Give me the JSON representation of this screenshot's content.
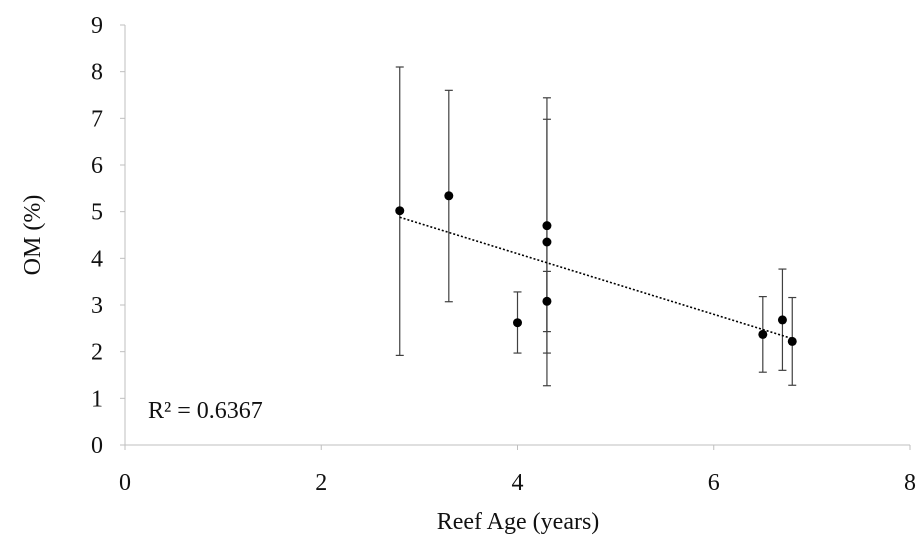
{
  "chart_data": {
    "type": "scatter",
    "xlabel": "Reef Age (years)",
    "ylabel": "OM (%)",
    "xlim": [
      0,
      8
    ],
    "ylim": [
      0,
      9
    ],
    "x_ticks": [
      "0",
      "2",
      "4",
      "6",
      "8"
    ],
    "y_ticks": [
      "0",
      "1",
      "2",
      "3",
      "4",
      "5",
      "6",
      "7",
      "8",
      "9"
    ],
    "grid": false,
    "legend": "none",
    "points": [
      {
        "x": 2.8,
        "y": 5.02,
        "err_low": 1.92,
        "err_high": 8.1
      },
      {
        "x": 3.3,
        "y": 5.34,
        "err_low": 3.07,
        "err_high": 7.6
      },
      {
        "x": 4.0,
        "y": 2.62,
        "err_low": 1.97,
        "err_high": 3.28
      },
      {
        "x": 4.3,
        "y": 4.7,
        "err_low": 1.97,
        "err_high": 7.44
      },
      {
        "x": 4.3,
        "y": 4.35,
        "err_low": 1.27,
        "err_high": 6.98
      },
      {
        "x": 4.3,
        "y": 3.08,
        "err_low": 2.43,
        "err_high": 3.72
      },
      {
        "x": 6.5,
        "y": 2.37,
        "err_low": 1.56,
        "err_high": 3.18
      },
      {
        "x": 6.7,
        "y": 2.68,
        "err_low": 1.6,
        "err_high": 3.77
      },
      {
        "x": 6.8,
        "y": 2.22,
        "err_low": 1.28,
        "err_high": 3.16
      }
    ],
    "trendline": {
      "style": "dotted",
      "x": [
        2.8,
        6.8
      ],
      "y": [
        4.88,
        2.28
      ]
    },
    "annotation": "R² = 0.6367",
    "colors": {
      "marker": "#000000",
      "axis": "#bfbfbf",
      "error_bar": "#404040",
      "trendline": "#000000"
    }
  }
}
